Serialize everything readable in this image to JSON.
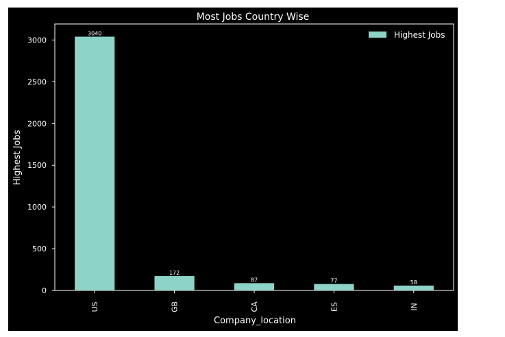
{
  "chart_data": {
    "type": "bar",
    "title": "Most Jobs Country Wise",
    "xlabel": "Company_location",
    "ylabel": "Highest Jobs",
    "categories": [
      "US",
      "GB",
      "CA",
      "ES",
      "IN"
    ],
    "series": [
      {
        "name": "Highest Jobs",
        "values": [
          3040,
          172,
          87,
          77,
          58
        ]
      }
    ],
    "data_labels": [
      "3040",
      "172",
      "87",
      "77",
      "58"
    ],
    "yticks": [
      0,
      500,
      1000,
      1500,
      2000,
      2500,
      3000
    ],
    "ylim": [
      0,
      3192
    ],
    "legend_position": "top-right",
    "grid": false,
    "colors": {
      "figure_background": "#000000",
      "plot_background": "#000000",
      "bar": "#8dd3c7",
      "axes": "#ffffff",
      "text": "#ffffff"
    }
  }
}
